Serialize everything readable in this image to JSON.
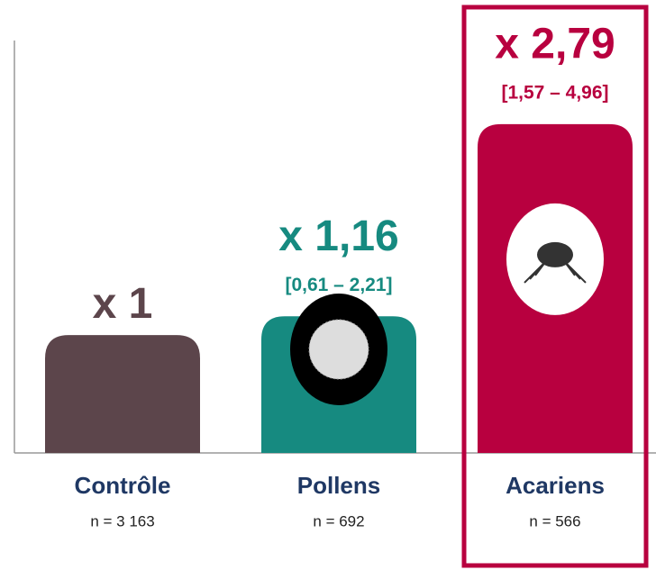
{
  "chart_data": {
    "type": "bar",
    "categories": [
      "Contrôle",
      "Pollens",
      "Acariens"
    ],
    "category_sublabels": [
      "n = 3 163",
      "n = 692",
      "n = 566"
    ],
    "values": [
      1,
      1.16,
      2.79
    ],
    "value_labels": [
      "x 1",
      "x 1,16",
      "x 2,79"
    ],
    "interval_labels": [
      null,
      "[0,61 – 2,21]",
      "[1,57 – 4,96]"
    ],
    "colors": [
      "#5c454b",
      "#168a80",
      "#b8003f"
    ],
    "highlight": 2,
    "ylim": [
      0,
      3.5
    ]
  }
}
